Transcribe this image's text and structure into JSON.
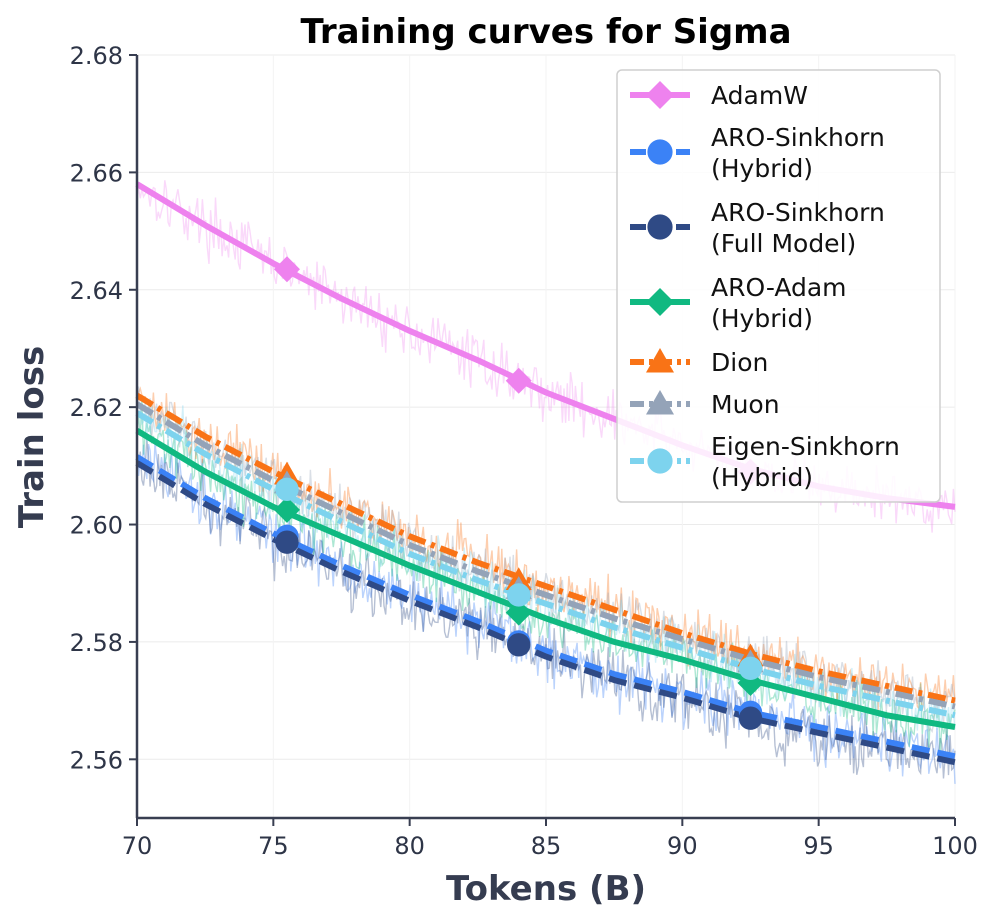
{
  "chart_data": {
    "type": "line",
    "title": "Training curves for Sigma",
    "xlabel": "Tokens (B)",
    "ylabel": "Train loss",
    "xlim": [
      70,
      100
    ],
    "ylim": [
      2.55,
      2.68
    ],
    "xticks": [
      70,
      75,
      80,
      85,
      90,
      95,
      100
    ],
    "yticks": [
      2.56,
      2.58,
      2.6,
      2.62,
      2.64,
      2.66,
      2.68
    ],
    "xtick_labels": [
      "70",
      "75",
      "80",
      "85",
      "90",
      "95",
      "100"
    ],
    "ytick_labels": [
      "2.56",
      "2.58",
      "2.60",
      "2.62",
      "2.64",
      "2.66",
      "2.68"
    ],
    "grid": true,
    "legend_position": "top-right",
    "series": [
      {
        "name": "AdamW",
        "legend_lines": [
          "AdamW"
        ],
        "color": "#ee82ee",
        "dash": "solid",
        "marker": "diamond",
        "noise": 0.0035,
        "x": [
          70,
          72.5,
          75,
          77.5,
          80,
          82.5,
          85,
          87.5,
          90,
          92.5,
          95,
          97.5,
          100
        ],
        "y": [
          2.658,
          2.651,
          2.6445,
          2.6385,
          2.633,
          2.628,
          2.6225,
          2.618,
          2.6135,
          2.6095,
          2.6065,
          2.6045,
          2.603
        ],
        "marker_x": [
          75.5,
          84,
          92.5
        ],
        "marker_y": [
          2.6435,
          2.6245,
          2.609
        ]
      },
      {
        "name": "ARO-Sinkhorn (Hybrid)",
        "legend_lines": [
          "ARO-Sinkhorn",
          "(Hybrid)"
        ],
        "color": "#3b82f6",
        "dash": "dashed",
        "marker": "circle",
        "noise": 0.004,
        "x": [
          70,
          72.5,
          75,
          77.5,
          80,
          82.5,
          85,
          87.5,
          90,
          92.5,
          95,
          97.5,
          100
        ],
        "y": [
          2.6115,
          2.6045,
          2.5985,
          2.593,
          2.588,
          2.5835,
          2.5785,
          2.5745,
          2.5715,
          2.568,
          2.5655,
          2.563,
          2.5605
        ],
        "marker_x": [
          75.5,
          84,
          92.5
        ],
        "marker_y": [
          2.598,
          2.58,
          2.568
        ]
      },
      {
        "name": "ARO-Sinkhorn (Full Model)",
        "legend_lines": [
          "ARO-Sinkhorn",
          "(Full Model)"
        ],
        "color": "#2f4a85",
        "dash": "dashed",
        "marker": "circle",
        "noise": 0.004,
        "x": [
          70,
          72.5,
          75,
          77.5,
          80,
          82.5,
          85,
          87.5,
          90,
          92.5,
          95,
          97.5,
          100
        ],
        "y": [
          2.6105,
          2.6035,
          2.5975,
          2.592,
          2.587,
          2.5825,
          2.5775,
          2.5735,
          2.5705,
          2.567,
          2.5645,
          2.562,
          2.5595
        ],
        "marker_x": [
          75.5,
          84,
          92.5
        ],
        "marker_y": [
          2.597,
          2.5795,
          2.567
        ]
      },
      {
        "name": "ARO-Adam (Hybrid)",
        "legend_lines": [
          "ARO-Adam",
          "(Hybrid)"
        ],
        "color": "#10b981",
        "dash": "solid",
        "marker": "diamond",
        "noise": 0.0035,
        "x": [
          70,
          72.5,
          75,
          77.5,
          80,
          82.5,
          85,
          87.5,
          90,
          92.5,
          95,
          97.5,
          100
        ],
        "y": [
          2.616,
          2.609,
          2.603,
          2.598,
          2.593,
          2.5885,
          2.584,
          2.58,
          2.577,
          2.5735,
          2.5705,
          2.5675,
          2.5655
        ],
        "marker_x": [
          75.5,
          84,
          92.5
        ],
        "marker_y": [
          2.6025,
          2.585,
          2.573
        ]
      },
      {
        "name": "Dion",
        "legend_lines": [
          "Dion"
        ],
        "color": "#f97316",
        "dash": "dashdot",
        "marker": "triangle",
        "noise": 0.0035,
        "x": [
          70,
          72.5,
          75,
          77.5,
          80,
          82.5,
          85,
          87.5,
          90,
          92.5,
          95,
          97.5,
          100
        ],
        "y": [
          2.622,
          2.615,
          2.609,
          2.6035,
          2.598,
          2.5935,
          2.5895,
          2.5855,
          2.5815,
          2.578,
          2.575,
          2.5725,
          2.57
        ],
        "marker_x": [
          75.5,
          84,
          92.5
        ],
        "marker_y": [
          2.6085,
          2.5905,
          2.5775
        ]
      },
      {
        "name": "Muon",
        "legend_lines": [
          "Muon"
        ],
        "color": "#94a3b8",
        "dash": "dashdot",
        "marker": "triangle",
        "noise": 0.0035,
        "x": [
          70,
          72.5,
          75,
          77.5,
          80,
          82.5,
          85,
          87.5,
          90,
          92.5,
          95,
          97.5,
          100
        ],
        "y": [
          2.6205,
          2.6135,
          2.6075,
          2.602,
          2.5965,
          2.592,
          2.588,
          2.584,
          2.5805,
          2.577,
          2.574,
          2.5715,
          2.569
        ],
        "marker_x": [
          75.5,
          84,
          92.5
        ],
        "marker_y": [
          2.607,
          2.589,
          2.5765
        ]
      },
      {
        "name": "Eigen-Sinkhorn (Hybrid)",
        "legend_lines": [
          "Eigen-Sinkhorn",
          "(Hybrid)"
        ],
        "color": "#7dd3ee",
        "dash": "dashdot",
        "marker": "circle",
        "noise": 0.0035,
        "x": [
          70,
          72.5,
          75,
          77.5,
          80,
          82.5,
          85,
          87.5,
          90,
          92.5,
          95,
          97.5,
          100
        ],
        "y": [
          2.619,
          2.612,
          2.606,
          2.6005,
          2.595,
          2.5905,
          2.5865,
          2.5825,
          2.579,
          2.5755,
          2.5725,
          2.57,
          2.5675
        ],
        "marker_x": [
          75.5,
          84,
          92.5
        ],
        "marker_y": [
          2.606,
          2.588,
          2.5755
        ]
      }
    ]
  }
}
